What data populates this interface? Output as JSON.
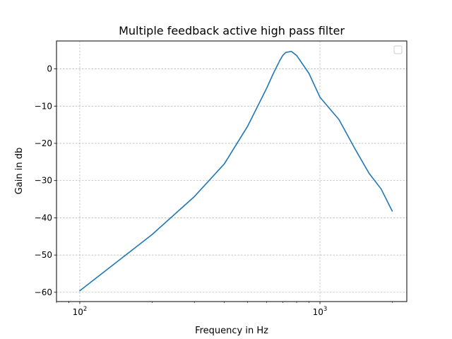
{
  "chart_data": {
    "type": "line",
    "title": "Multiple feedback active high pass filter",
    "xlabel": "Frequency in Hz",
    "ylabel": "Gain in db",
    "xscale": "log",
    "xlim": [
      80,
      2300
    ],
    "ylim": [
      -62.5,
      7.5
    ],
    "grid": true,
    "grid_style": "dashed",
    "legend": "top-right",
    "line_color": "#1f77b4",
    "x_ticks": [
      {
        "value": 100,
        "base": "10",
        "exp": "2"
      },
      {
        "value": 1000,
        "base": "10",
        "exp": "3"
      }
    ],
    "y_ticks": [
      {
        "value": 0,
        "label": "0"
      },
      {
        "value": -10,
        "label": "−10"
      },
      {
        "value": -20,
        "label": "−20"
      },
      {
        "value": -30,
        "label": "−30"
      },
      {
        "value": -40,
        "label": "−40"
      },
      {
        "value": -50,
        "label": "−50"
      },
      {
        "value": -60,
        "label": "−60"
      }
    ],
    "series": [
      {
        "x": [
          100,
          200,
          300,
          400,
          500,
          600,
          640,
          680,
          700,
          720,
          760,
          800,
          900,
          1000,
          1200,
          1400,
          1600,
          1800,
          2000
        ],
        "y": [
          -59.6,
          -44.5,
          -34.3,
          -25.5,
          -15.4,
          -5.2,
          -1.2,
          2.2,
          3.6,
          4.4,
          4.7,
          3.6,
          -1.2,
          -7.6,
          -13.6,
          -21.5,
          -28.0,
          -32.3,
          -38.2
        ]
      }
    ]
  }
}
